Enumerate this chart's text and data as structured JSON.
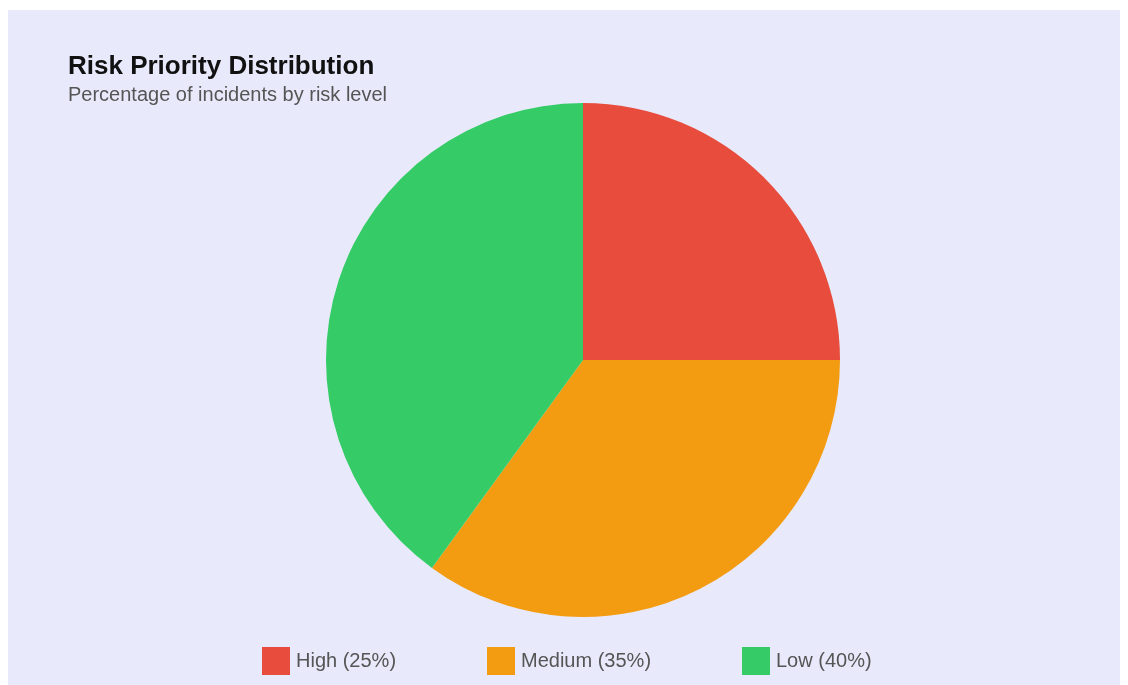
{
  "chart_data": {
    "type": "pie",
    "title": "Risk Priority Distribution",
    "subtitle": "Percentage of incidents by risk level",
    "categories": [
      "High (25%)",
      "Medium (35%)",
      "Low (40%)"
    ],
    "values": [
      25,
      35,
      40
    ],
    "colors": [
      "#e74c3c",
      "#f39c12",
      "#35cc67"
    ],
    "legend": "bottom"
  }
}
